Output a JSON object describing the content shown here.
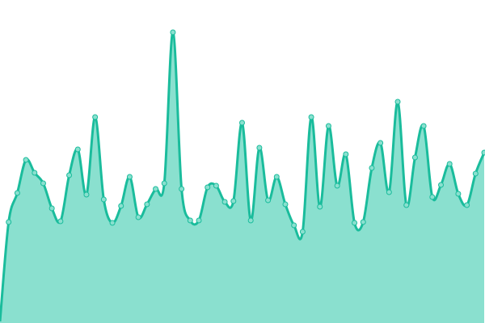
{
  "chart_data": {
    "type": "area",
    "title": "",
    "xlabel": "",
    "ylabel": "",
    "x": [
      0,
      1,
      2,
      3,
      4,
      5,
      6,
      7,
      8,
      9,
      10,
      11,
      12,
      13,
      14,
      15,
      16,
      17,
      18,
      19,
      20,
      21,
      22,
      23,
      24,
      25,
      26,
      27,
      28,
      29,
      30,
      31,
      32,
      33,
      34,
      35,
      36,
      37,
      38,
      39,
      40,
      41,
      42,
      43,
      44,
      45,
      46,
      47,
      48,
      49,
      50,
      51,
      52,
      53,
      54,
      55,
      56
    ],
    "values": [
      2,
      125,
      161,
      202,
      186,
      173,
      142,
      126,
      183,
      215,
      159,
      255,
      153,
      124,
      145,
      181,
      131,
      147,
      166,
      173,
      360,
      166,
      127,
      127,
      168,
      170,
      150,
      151,
      248,
      127,
      217,
      152,
      181,
      147,
      121,
      113,
      255,
      144,
      244,
      170,
      209,
      124,
      125,
      192,
      223,
      162,
      274,
      146,
      205,
      244,
      156,
      171,
      197,
      160,
      146,
      185,
      211
    ],
    "xlim": [
      0,
      56
    ],
    "ylim": [
      0,
      400
    ],
    "grid": false,
    "axes_visible": false,
    "smooth": true,
    "markers": true,
    "colors": {
      "line": "#1abc9c",
      "fill": "#8ae0cf",
      "marker_fill": "#8ae0cf",
      "marker_stroke": "#1abc9c"
    }
  }
}
